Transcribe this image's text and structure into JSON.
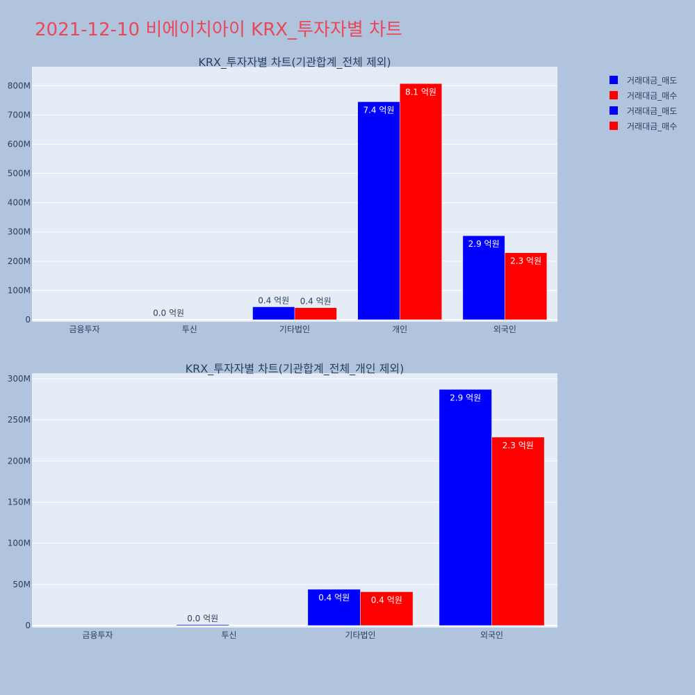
{
  "page_title": "2021-12-10 비에이치아이 KRX_투자자별 차트",
  "colors": {
    "title": "#e8485a",
    "sell": "#0000ff",
    "buy": "#ff0000",
    "plot_bg": "#e5ecf6",
    "paper_bg": "#b0c4de",
    "axis_text": "#2a3f5f"
  },
  "legend": [
    {
      "name": "거래대금_매도",
      "color": "#0000ff"
    },
    {
      "name": "거래대금_매수",
      "color": "#ff0000"
    },
    {
      "name": "거래대금_매도",
      "color": "#0000ff"
    },
    {
      "name": "거래대금_매수",
      "color": "#ff0000"
    }
  ],
  "chart_data": [
    {
      "type": "bar",
      "title": "KRX_투자자별 차트(기관합계_전체 제외)",
      "categories": [
        "금융투자",
        "투신",
        "기타법인",
        "개인",
        "외국인"
      ],
      "series": [
        {
          "name": "거래대금_매도",
          "values": [
            0,
            1000000,
            44000000,
            745000000,
            287000000
          ],
          "labels": [
            "",
            "0.0 억원",
            "0.4 억원",
            "7.4 억원",
            "2.9 억원"
          ]
        },
        {
          "name": "거래대금_매수",
          "values": [
            0,
            0,
            41000000,
            807000000,
            229000000
          ],
          "labels": [
            "",
            "",
            "0.4 억원",
            "8.1 억원",
            "2.3 억원"
          ]
        }
      ],
      "ylim": [
        0,
        860000000
      ],
      "yticks": [
        0,
        100000000,
        200000000,
        300000000,
        400000000,
        500000000,
        600000000,
        700000000,
        800000000
      ],
      "ytick_labels": [
        "0",
        "100M",
        "200M",
        "300M",
        "400M",
        "500M",
        "600M",
        "700M",
        "800M"
      ],
      "grid": true,
      "legend_position": "top-right"
    },
    {
      "type": "bar",
      "title": "KRX_투자자별 차트(기관합계_전체_개인 제외)",
      "categories": [
        "금융투자",
        "투신",
        "기타법인",
        "외국인"
      ],
      "series": [
        {
          "name": "거래대금_매도",
          "values": [
            0,
            1000000,
            44000000,
            287000000
          ],
          "labels": [
            "",
            "0.0 억원",
            "0.4 억원",
            "2.9 억원"
          ]
        },
        {
          "name": "거래대금_매수",
          "values": [
            0,
            0,
            41000000,
            229000000
          ],
          "labels": [
            "",
            "",
            "0.4 억원",
            "2.3 억원"
          ]
        }
      ],
      "ylim": [
        0,
        305000000
      ],
      "yticks": [
        0,
        50000000,
        100000000,
        150000000,
        200000000,
        250000000,
        300000000
      ],
      "ytick_labels": [
        "0",
        "50M",
        "100M",
        "150M",
        "200M",
        "250M",
        "300M"
      ],
      "grid": true,
      "legend_position": "top-right"
    }
  ]
}
